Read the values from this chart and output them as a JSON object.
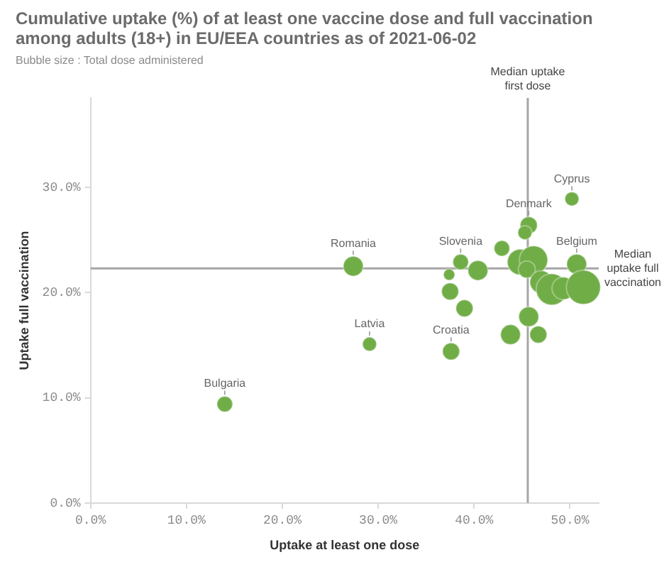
{
  "chart_data": {
    "type": "bubble",
    "title": "Cumulative uptake (%) of at least one vaccine dose and full vaccination among adults (18+) in EU/EEA countries as of 2021-06-02",
    "subtitle": "Bubble size : Total dose administered",
    "xlabel": "Uptake at least one dose",
    "ylabel": "Uptake full vaccination",
    "x": [
      27.4,
      50.2,
      45.7,
      45.3,
      42.9,
      38.6,
      40.4,
      37.4,
      37.5,
      39.0,
      37.6,
      29.1,
      14.0,
      45.7,
      43.8,
      46.7,
      44.8,
      46.2,
      45.5,
      47.0,
      48.1,
      49.3,
      50.7,
      51.4
    ],
    "values": [
      22.5,
      28.9,
      26.4,
      25.7,
      24.2,
      22.9,
      22.1,
      21.7,
      20.1,
      18.5,
      14.4,
      15.1,
      9.4,
      17.7,
      16.0,
      16.0,
      22.9,
      23.1,
      22.2,
      21.0,
      20.3,
      20.4,
      22.7,
      20.5
    ],
    "sizes": [
      0.34,
      0.17,
      0.25,
      0.17,
      0.21,
      0.21,
      0.34,
      0.11,
      0.25,
      0.25,
      0.25,
      0.17,
      0.21,
      0.34,
      0.34,
      0.25,
      0.56,
      0.69,
      0.25,
      0.44,
      0.84,
      0.44,
      0.34,
      1
    ],
    "color": "#70ad47",
    "xlim": [
      0,
      53
    ],
    "ylim": [
      0,
      38.5
    ],
    "xticks": [
      {
        "value": 0,
        "label": "0.0%"
      },
      {
        "value": 10,
        "label": "10.0%"
      },
      {
        "value": 20,
        "label": "20.0%"
      },
      {
        "value": 30,
        "label": "30.0%"
      },
      {
        "value": 40,
        "label": "40.0%"
      },
      {
        "value": 50,
        "label": "50.0%"
      }
    ],
    "yticks": [
      {
        "value": 0,
        "label": "0.0%"
      },
      {
        "value": 10,
        "label": "10.0%"
      },
      {
        "value": 20,
        "label": "20.0%"
      },
      {
        "value": 30,
        "label": "30.0%"
      }
    ],
    "grid": false,
    "legend": false,
    "ref_lines": [
      {
        "axis": "x",
        "value": 45.6,
        "label": "Median uptake first dose"
      },
      {
        "axis": "y",
        "value": 22.3,
        "label": "Median uptake full vaccination"
      }
    ],
    "annotations": [
      {
        "text": "Romania",
        "x": 27.4,
        "y": 22.5
      },
      {
        "text": "Cyprus",
        "x": 50.2,
        "y": 28.9
      },
      {
        "text": "Denmark",
        "x": 45.7,
        "y": 26.4
      },
      {
        "text": "Slovenia",
        "x": 38.6,
        "y": 22.9
      },
      {
        "text": "Belgium",
        "x": 50.7,
        "y": 22.7
      },
      {
        "text": "Latvia",
        "x": 29.1,
        "y": 15.1
      },
      {
        "text": "Croatia",
        "x": 37.6,
        "y": 14.4
      },
      {
        "text": "Bulgaria",
        "x": 14.0,
        "y": 9.4
      }
    ]
  }
}
